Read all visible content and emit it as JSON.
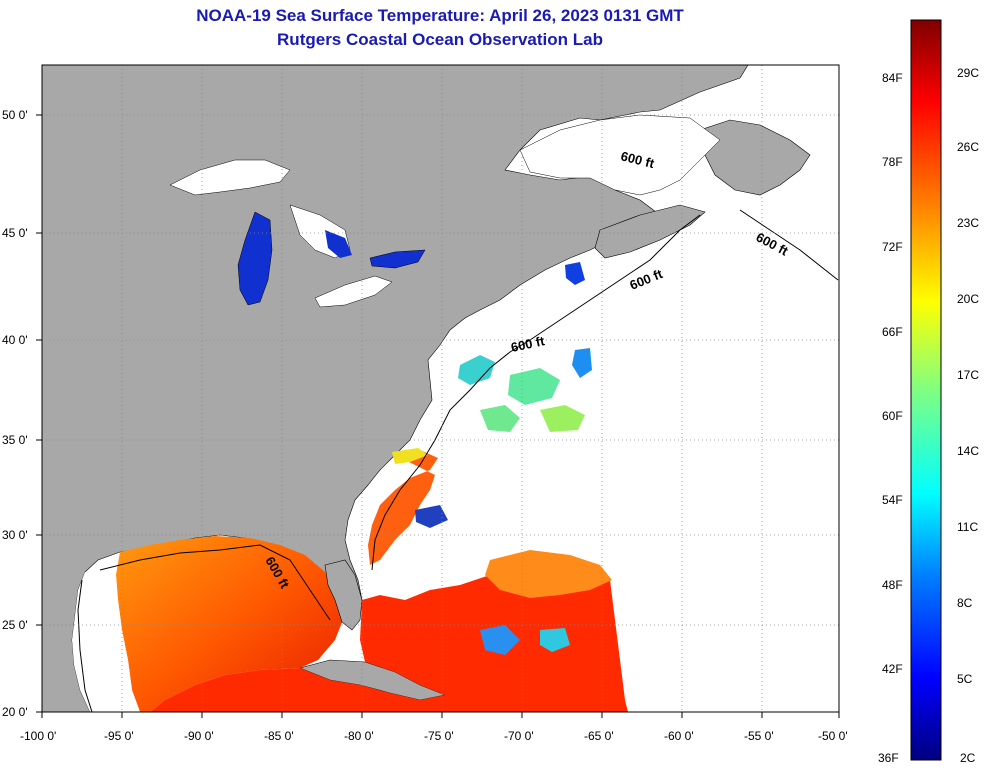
{
  "header": {
    "title_line1": "NOAA-19 Sea Surface Temperature:  April 26, 2023 0131 GMT",
    "title_line2": "Rutgers Coastal Ocean Observation Lab"
  },
  "axes": {
    "longitude_ticks": [
      "-100 0'",
      "-95 0'",
      "-90 0'",
      "-85 0'",
      "-80 0'",
      "-75 0'",
      "-70 0'",
      "-65 0'",
      "-60 0'",
      "-55 0'",
      "-50 0'"
    ],
    "latitude_ticks": [
      "50 0'",
      "45 0'",
      "40 0'",
      "35 0'",
      "30 0'",
      "25 0'",
      "20 0'"
    ],
    "lon_range": [
      -100,
      -50
    ],
    "lat_range": [
      20,
      52
    ]
  },
  "colorbar": {
    "fahrenheit_labels": [
      "84F",
      "78F",
      "72F",
      "66F",
      "60F",
      "54F",
      "48F",
      "42F",
      "36F"
    ],
    "celsius_labels": [
      "29C",
      "26C",
      "23C",
      "20C",
      "17C",
      "14C",
      "11C",
      "8C",
      "5C",
      "2C"
    ],
    "range_c": [
      2,
      30
    ]
  },
  "contours": {
    "labels": [
      "600 ft",
      "600 ft",
      "600 ft",
      "600 ft",
      "600 ft"
    ]
  },
  "colors": {
    "land": "#a8a8a8",
    "cloud": "#ffffff",
    "title": "#1a1ab4"
  }
}
